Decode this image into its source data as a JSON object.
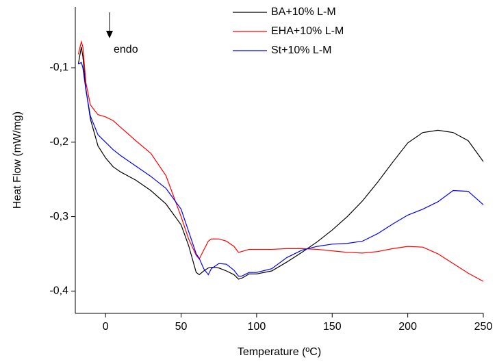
{
  "chart_data": {
    "type": "line",
    "x_label": "Temperature (ºC)",
    "y_label": "Heat Flow (mW/mg)",
    "annotation": "endo",
    "x": [
      -18,
      -16,
      -15,
      -13,
      -10,
      -5,
      0,
      5,
      10,
      20,
      30,
      40,
      50,
      55,
      60,
      62,
      65,
      68,
      70,
      75,
      80,
      85,
      88,
      90,
      95,
      100,
      110,
      120,
      130,
      140,
      150,
      160,
      170,
      180,
      190,
      200,
      210,
      220,
      230,
      240,
      250
    ],
    "series": [
      {
        "name": "BA+10% L-M",
        "color": "#000000",
        "values": [
          -0.095,
          -0.072,
          -0.085,
          -0.128,
          -0.169,
          -0.205,
          -0.221,
          -0.233,
          -0.24,
          -0.251,
          -0.265,
          -0.283,
          -0.311,
          -0.339,
          -0.375,
          -0.378,
          -0.373,
          -0.369,
          -0.368,
          -0.369,
          -0.373,
          -0.378,
          -0.384,
          -0.383,
          -0.377,
          -0.377,
          -0.373,
          -0.361,
          -0.348,
          -0.334,
          -0.318,
          -0.3,
          -0.279,
          -0.254,
          -0.227,
          -0.201,
          -0.187,
          -0.184,
          -0.187,
          -0.198,
          -0.226
        ]
      },
      {
        "name": "EHA+10% L-M",
        "color": "#ff0000",
        "values": [
          -0.082,
          -0.065,
          -0.072,
          -0.12,
          -0.15,
          -0.163,
          -0.166,
          -0.171,
          -0.18,
          -0.198,
          -0.215,
          -0.245,
          -0.3,
          -0.33,
          -0.352,
          -0.357,
          -0.345,
          -0.333,
          -0.33,
          -0.33,
          -0.333,
          -0.34,
          -0.348,
          -0.347,
          -0.344,
          -0.344,
          -0.344,
          -0.343,
          -0.343,
          -0.344,
          -0.346,
          -0.348,
          -0.349,
          -0.347,
          -0.343,
          -0.34,
          -0.341,
          -0.35,
          -0.363,
          -0.376,
          -0.387
        ]
      },
      {
        "name": "St+10% L-M",
        "color": "#0000ff",
        "values": [
          -0.095,
          -0.093,
          -0.1,
          -0.13,
          -0.165,
          -0.19,
          -0.2,
          -0.21,
          -0.218,
          -0.232,
          -0.246,
          -0.262,
          -0.29,
          -0.32,
          -0.35,
          -0.356,
          -0.37,
          -0.378,
          -0.37,
          -0.363,
          -0.364,
          -0.372,
          -0.38,
          -0.38,
          -0.375,
          -0.375,
          -0.37,
          -0.355,
          -0.345,
          -0.34,
          -0.337,
          -0.336,
          -0.333,
          -0.323,
          -0.31,
          -0.298,
          -0.29,
          -0.28,
          -0.265,
          -0.266,
          -0.284
        ]
      }
    ],
    "xlim": [
      -20,
      250
    ],
    "xticks": [
      0,
      50,
      100,
      150,
      200,
      250
    ],
    "ylim": [
      -0.43,
      -0.02
    ],
    "yticks": [
      {
        "value": -0.1,
        "label": "-0,1"
      },
      {
        "value": -0.2,
        "label": "-0,2"
      },
      {
        "value": -0.3,
        "label": "-0,3"
      },
      {
        "value": -0.4,
        "label": "-0,4"
      }
    ],
    "grid": false
  }
}
